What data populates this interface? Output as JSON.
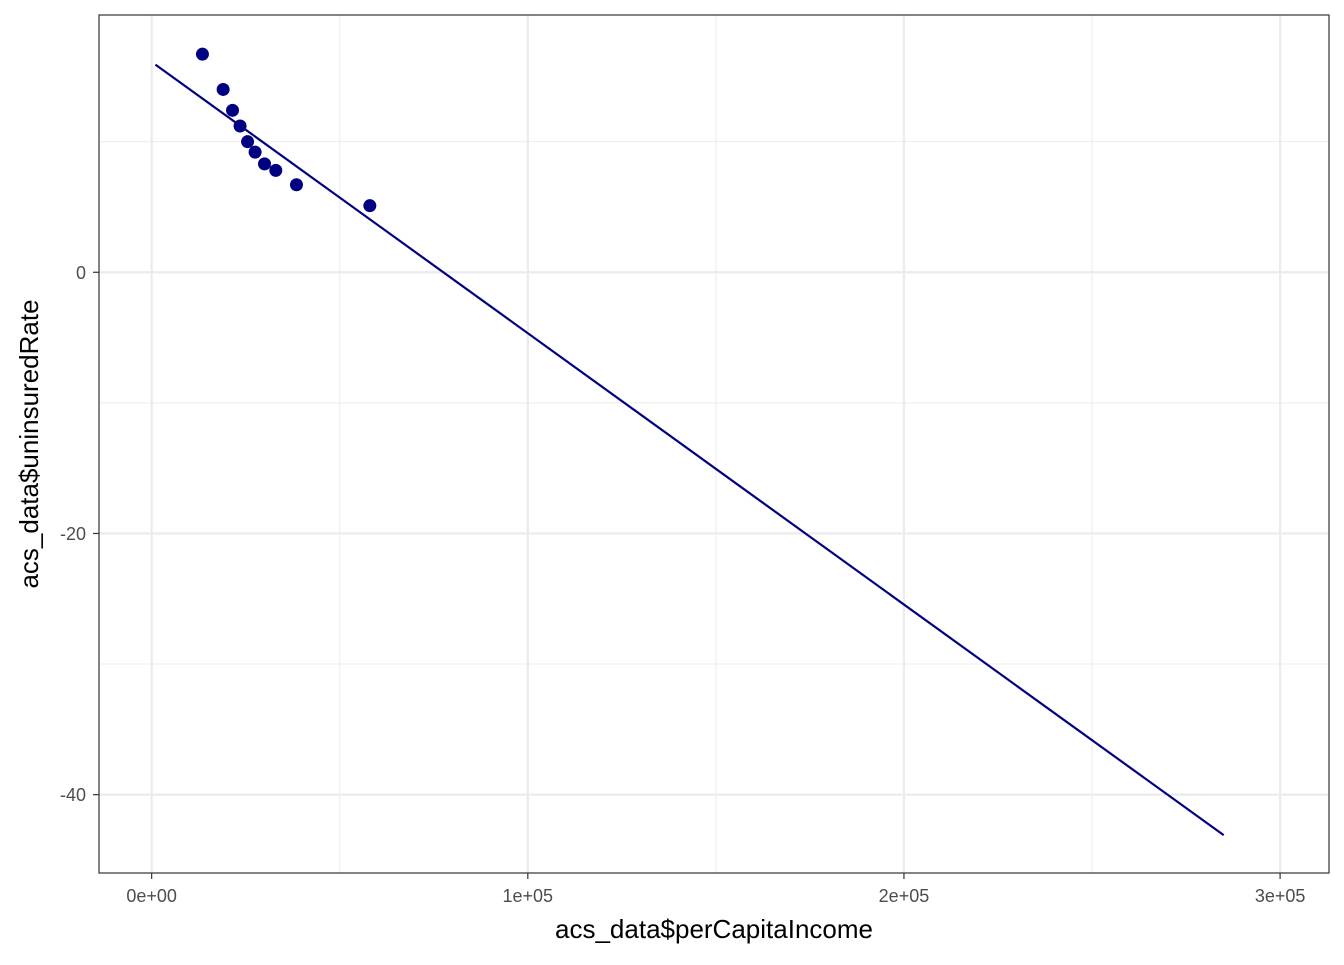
{
  "chart_data": {
    "type": "scatter",
    "title": "",
    "xlabel": "acs_data$perCapitaIncome",
    "ylabel": "acs_data$uninsuredRate",
    "xlim": [
      -14000,
      313000
    ],
    "ylim": [
      -46.0,
      19.7
    ],
    "x_major_ticks": [
      0,
      100000,
      200000,
      300000
    ],
    "x_tick_labels": [
      "0e+00",
      "1e+05",
      "2e+05",
      "3e+05"
    ],
    "x_minor_ticks": [
      50000,
      150000,
      250000
    ],
    "y_major_ticks": [
      -40,
      -20,
      0
    ],
    "y_tick_labels": [
      "-40",
      "-20",
      "0"
    ],
    "y_minor_ticks": [
      -30,
      -10,
      10
    ],
    "grid": true,
    "theme": "bw",
    "points": [
      {
        "x": 13500,
        "y": 16.7
      },
      {
        "x": 19000,
        "y": 14.0
      },
      {
        "x": 21500,
        "y": 12.4
      },
      {
        "x": 23500,
        "y": 11.2
      },
      {
        "x": 25500,
        "y": 10.0
      },
      {
        "x": 27500,
        "y": 9.2
      },
      {
        "x": 30000,
        "y": 8.3
      },
      {
        "x": 33000,
        "y": 7.8
      },
      {
        "x": 38500,
        "y": 6.7
      },
      {
        "x": 58000,
        "y": 5.1
      }
    ],
    "fit_line": {
      "x": [
        1000,
        285000
      ],
      "y": [
        15.9,
        -43.1
      ]
    },
    "colors": {
      "points": "#000080",
      "line": "#000080",
      "major_grid": "#ebebeb",
      "minor_grid": "#ebebeb",
      "panel_border": "#333333",
      "tick_label": "#4d4d4d"
    }
  }
}
